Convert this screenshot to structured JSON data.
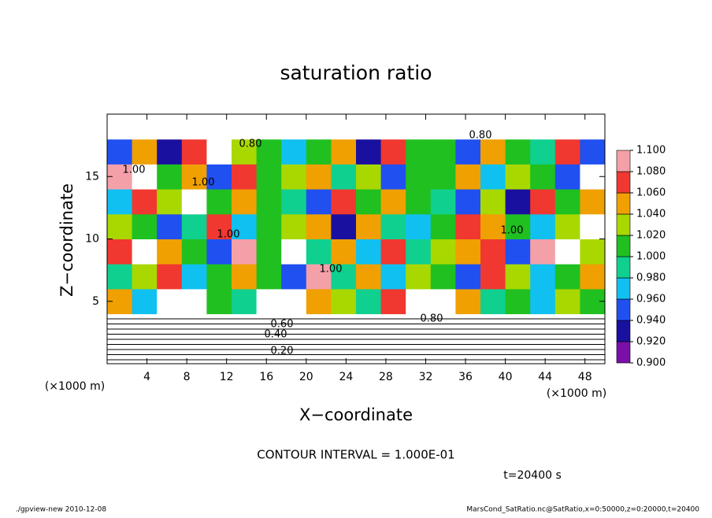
{
  "chart_data": {
    "type": "heatmap",
    "title": "saturation ratio",
    "x_label": "X−coordinate",
    "y_label": "Z−coordinate",
    "x_unit_left": "(×1000 m)",
    "x_unit_right": "(×1000 m)",
    "contour_note": "CONTOUR INTERVAL = 1.000E-01",
    "time_note": "t=20400 s",
    "footer_left": "./gpview-new  2010-12-08",
    "footer_right": "MarsCond_SatRatio.nc@SatRatio,x=0:50000,z=0:20000,t=20400",
    "xlim": [
      0,
      50
    ],
    "ylim": [
      0,
      20
    ],
    "xticks": [
      4,
      8,
      12,
      16,
      20,
      24,
      28,
      32,
      36,
      40,
      44,
      48
    ],
    "yticks": [
      5,
      10,
      15
    ],
    "x_edges": [
      0,
      2.5,
      5,
      7.5,
      10,
      12.5,
      15,
      17.5,
      20,
      22.5,
      25,
      27.5,
      30,
      32.5,
      35,
      37.5,
      40,
      42.5,
      45,
      47.5,
      50
    ],
    "y_edges": [
      0,
      2,
      4,
      6,
      8,
      10,
      12,
      14,
      16,
      18,
      20
    ],
    "values": [
      [
        0.2,
        0.2,
        0.2,
        0.2,
        0.2,
        0.2,
        0.2,
        0.2,
        0.2,
        0.2,
        0.2,
        0.2,
        0.2,
        0.2,
        0.2,
        0.2,
        0.2,
        0.2,
        0.2,
        0.2
      ],
      [
        0.55,
        0.55,
        0.55,
        0.55,
        0.55,
        0.55,
        0.55,
        0.55,
        0.55,
        0.55,
        0.55,
        0.55,
        0.55,
        0.55,
        0.55,
        0.55,
        0.55,
        0.55,
        0.55,
        0.55
      ],
      [
        1.04,
        0.96,
        0.85,
        0.85,
        1.0,
        0.98,
        0.86,
        0.86,
        1.05,
        1.02,
        0.98,
        1.06,
        0.86,
        0.86,
        1.04,
        0.98,
        1.0,
        0.96,
        1.02,
        1.0
      ],
      [
        0.98,
        1.02,
        1.06,
        0.97,
        1.0,
        1.04,
        1.0,
        0.94,
        1.08,
        0.98,
        1.04,
        0.96,
        1.02,
        1.0,
        0.95,
        1.06,
        1.02,
        0.97,
        1.0,
        1.04
      ],
      [
        1.06,
        0.86,
        1.04,
        1.0,
        0.95,
        1.08,
        1.0,
        0.87,
        0.98,
        1.04,
        0.96,
        1.06,
        0.98,
        1.02,
        1.04,
        1.06,
        0.94,
        1.08,
        0.87,
        1.02
      ],
      [
        1.02,
        1.0,
        0.94,
        0.98,
        1.06,
        0.96,
        1.01,
        1.02,
        1.05,
        0.93,
        1.04,
        0.98,
        0.96,
        1.01,
        1.06,
        1.04,
        1.0,
        0.96,
        1.02,
        0.86
      ],
      [
        0.96,
        1.06,
        1.02,
        0.87,
        1.0,
        1.04,
        1.0,
        0.98,
        0.95,
        1.06,
        1.0,
        1.04,
        1.0,
        0.99,
        0.94,
        1.02,
        0.93,
        1.06,
        1.0,
        1.04
      ],
      [
        1.08,
        0.86,
        1.0,
        1.04,
        0.94,
        1.06,
        1.01,
        1.02,
        1.04,
        0.98,
        1.02,
        0.95,
        1.0,
        1.01,
        1.04,
        0.96,
        1.02,
        1.0,
        0.94,
        0.86
      ],
      [
        0.94,
        1.04,
        0.92,
        1.06,
        0.86,
        1.02,
        1.01,
        0.96,
        1.0,
        1.04,
        0.93,
        1.06,
        1.01,
        1.0,
        0.95,
        1.04,
        1.0,
        0.98,
        1.06,
        0.95
      ],
      [
        0.82,
        0.8,
        0.85,
        0.8,
        0.78,
        0.82,
        0.85,
        0.82,
        0.8,
        0.86,
        0.82,
        0.8,
        0.84,
        0.8,
        0.82,
        0.8,
        0.82,
        0.86,
        0.84,
        0.82
      ]
    ],
    "color_levels": [
      {
        "value": 0.9,
        "label": "0.900"
      },
      {
        "value": 0.92,
        "label": "0.920"
      },
      {
        "value": 0.94,
        "label": "0.940"
      },
      {
        "value": 0.96,
        "label": "0.960"
      },
      {
        "value": 0.98,
        "label": "0.980"
      },
      {
        "value": 1.0,
        "label": "1.000"
      },
      {
        "value": 1.02,
        "label": "1.020"
      },
      {
        "value": 1.04,
        "label": "1.040"
      },
      {
        "value": 1.06,
        "label": "1.060"
      },
      {
        "value": 1.08,
        "label": "1.080"
      },
      {
        "value": 1.1,
        "label": "1.100"
      }
    ],
    "colors": [
      "#7a10a8",
      "#1a10a0",
      "#2050f0",
      "#10c0f0",
      "#10d090",
      "#20c020",
      "#a8d800",
      "#f0a000",
      "#f03830",
      "#f4a0a8"
    ],
    "contour_labels": [
      {
        "value": 0.8,
        "label": "0.80"
      },
      {
        "value": 0.8,
        "label": "0.80"
      },
      {
        "value": 1.0,
        "label": "1.00"
      },
      {
        "value": 1.0,
        "label": "1.00"
      },
      {
        "value": 1.0,
        "label": "1.00"
      },
      {
        "value": 1.0,
        "label": "1.00"
      },
      {
        "value": 1.0,
        "label": "1.00"
      },
      {
        "value": 0.6,
        "label": "0.60"
      },
      {
        "value": 0.4,
        "label": "0.40"
      },
      {
        "value": 0.2,
        "label": "0.20"
      },
      {
        "value": 0.8,
        "label": "0.80"
      }
    ]
  }
}
